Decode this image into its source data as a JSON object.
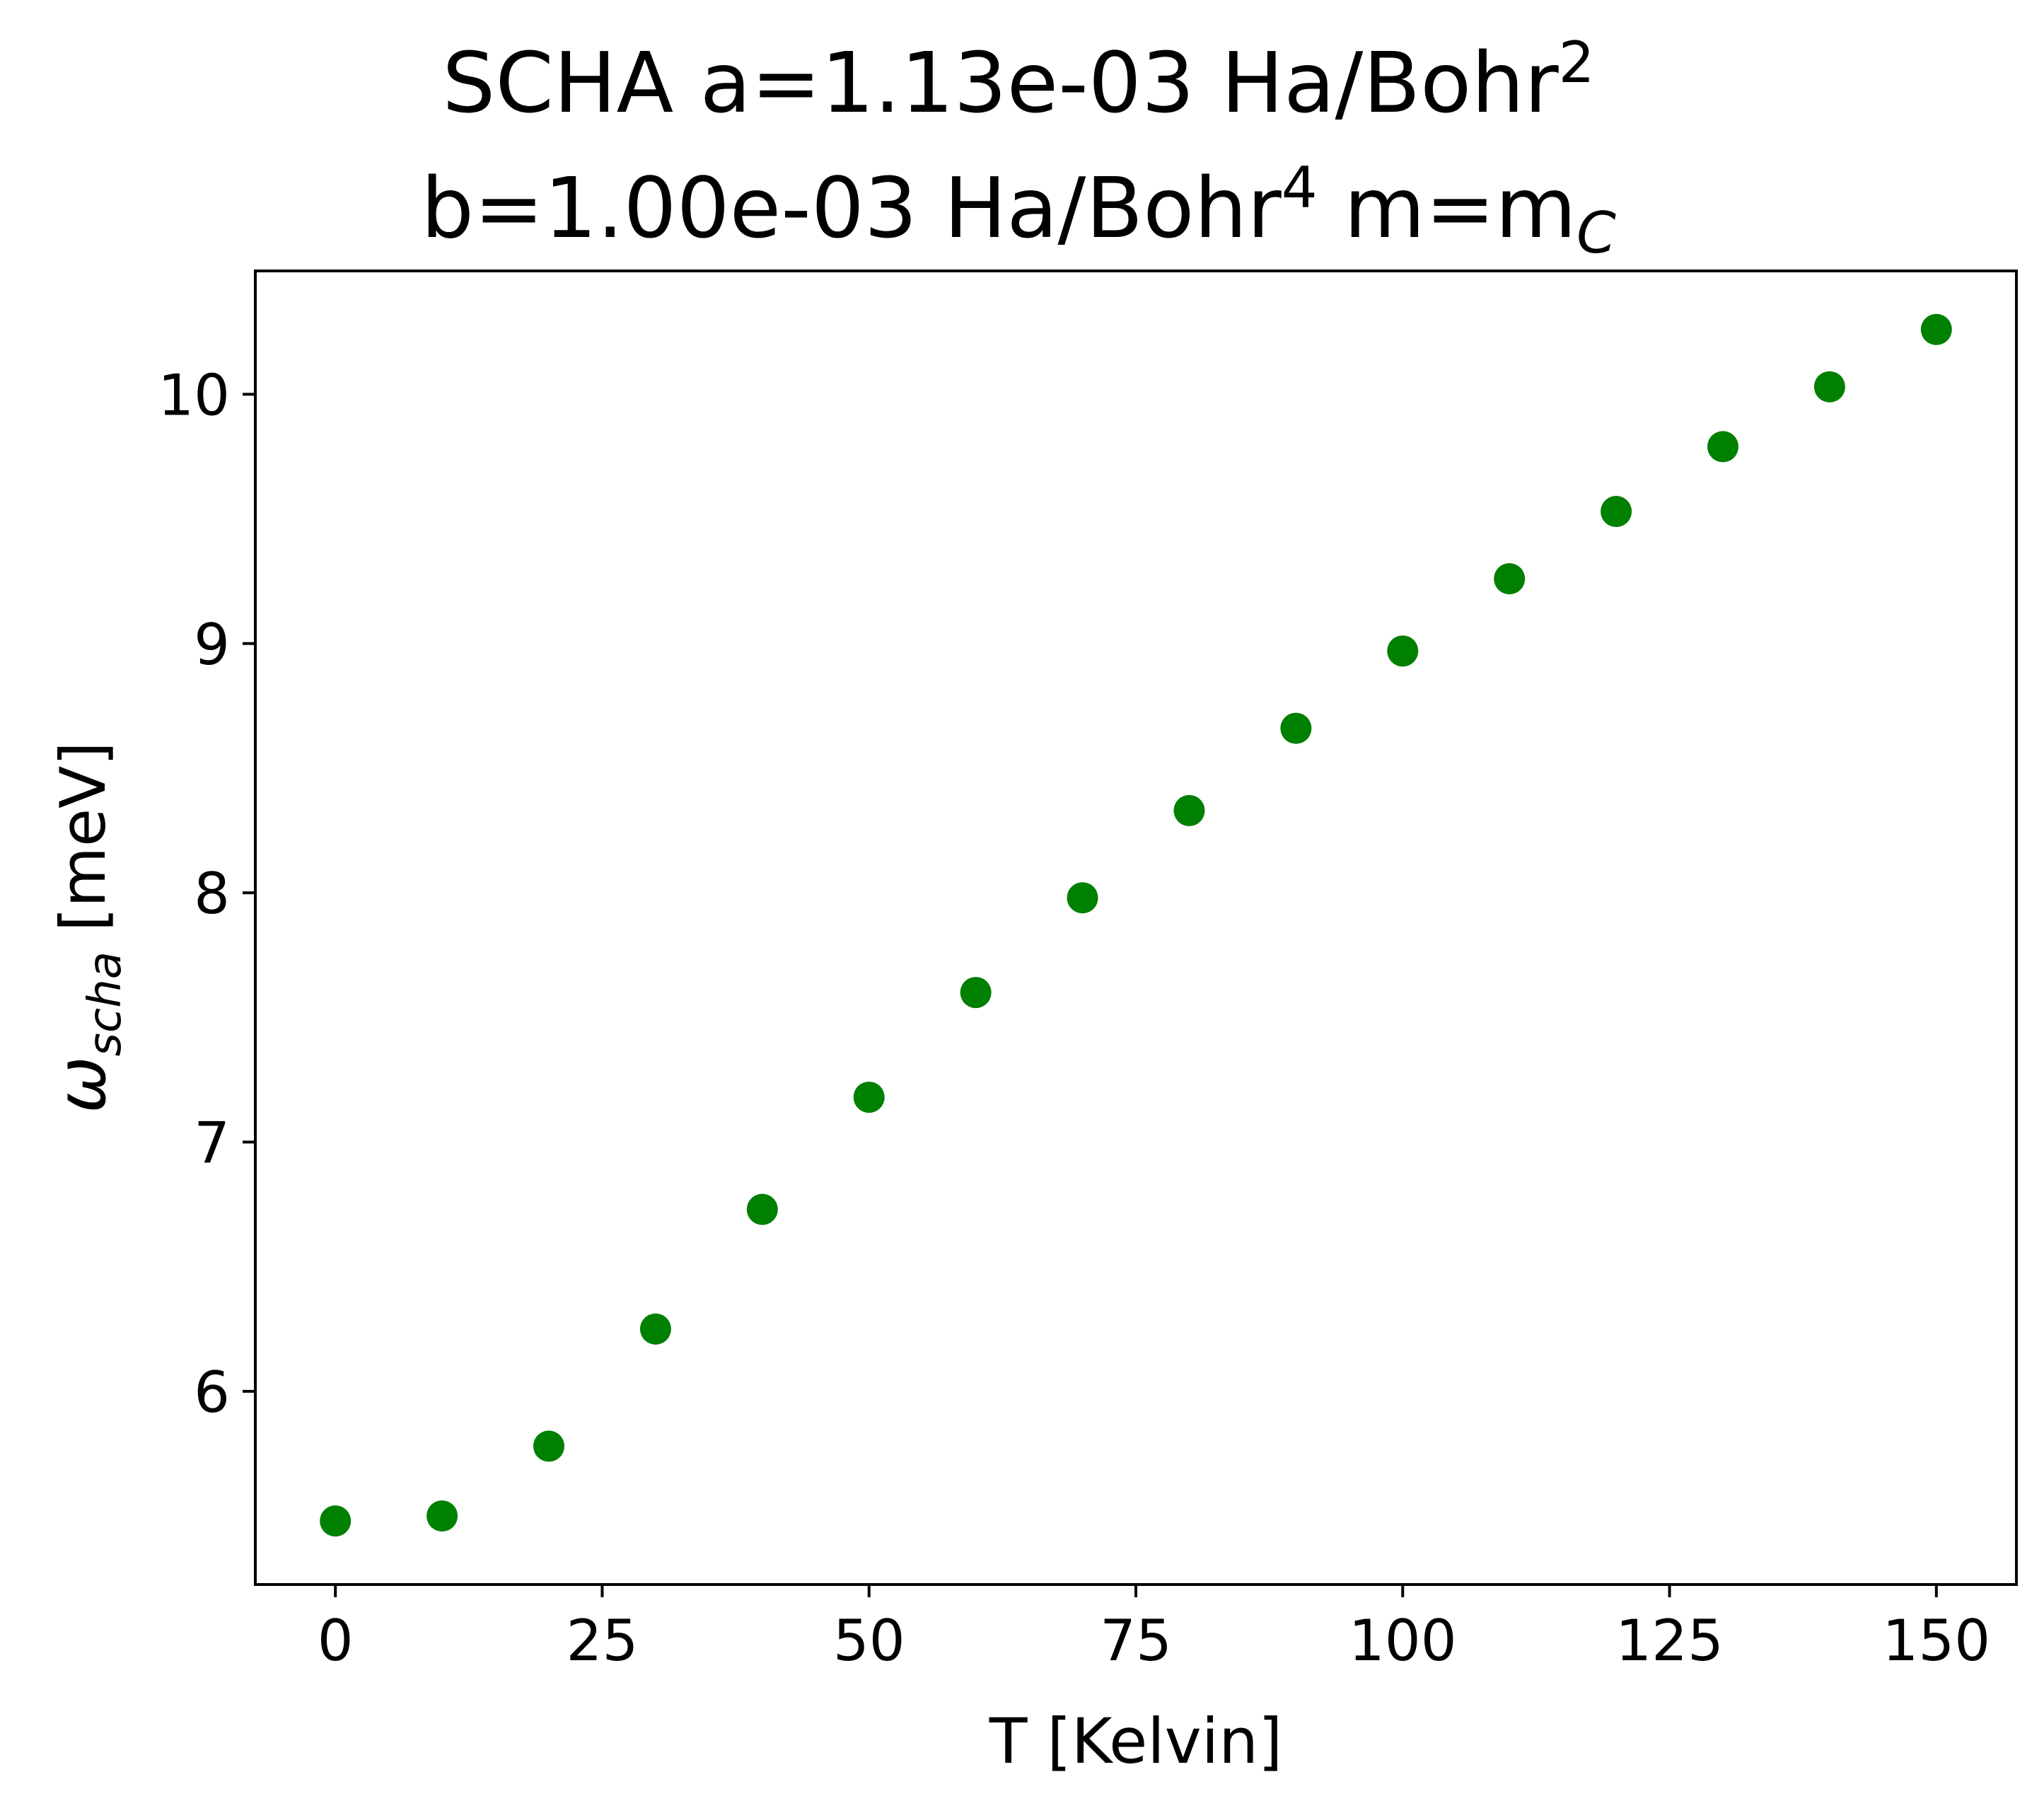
{
  "chart_data": {
    "type": "scatter",
    "title": {
      "line1_prefix": "SCHA a=1.13e-03 Ha/Bohr",
      "line1_sup": "2",
      "line2_prefix": "b=1.00e-03 Ha/Bohr",
      "line2_sup": "4",
      "line2_mid": " m=m",
      "line2_sub": "C"
    },
    "xlabel": "T [Kelvin]",
    "ylabel": {
      "symbol": "ω",
      "subscript": "scha",
      "unit": " [meV]"
    },
    "xlim": [
      -7.5,
      157.5
    ],
    "ylim": [
      5.225,
      10.495
    ],
    "xticks": [
      0,
      25,
      50,
      75,
      100,
      125,
      150
    ],
    "xtick_labels": [
      "0",
      "25",
      "50",
      "75",
      "100",
      "125",
      "150"
    ],
    "yticks": [
      6,
      7,
      8,
      9,
      10
    ],
    "ytick_labels": [
      "6",
      "7",
      "8",
      "9",
      "10"
    ],
    "grid": false,
    "legend": "none",
    "series": [
      {
        "color": "#008000",
        "marker": "circle",
        "x": [
          0,
          10,
          20,
          30,
          40,
          50,
          60,
          70,
          80,
          90,
          100,
          110,
          120,
          130,
          140,
          150
        ],
        "y": [
          5.48,
          5.5,
          5.78,
          6.25,
          6.73,
          7.18,
          7.6,
          7.98,
          8.33,
          8.66,
          8.97,
          9.26,
          9.53,
          9.79,
          10.03,
          10.26
        ]
      }
    ]
  }
}
